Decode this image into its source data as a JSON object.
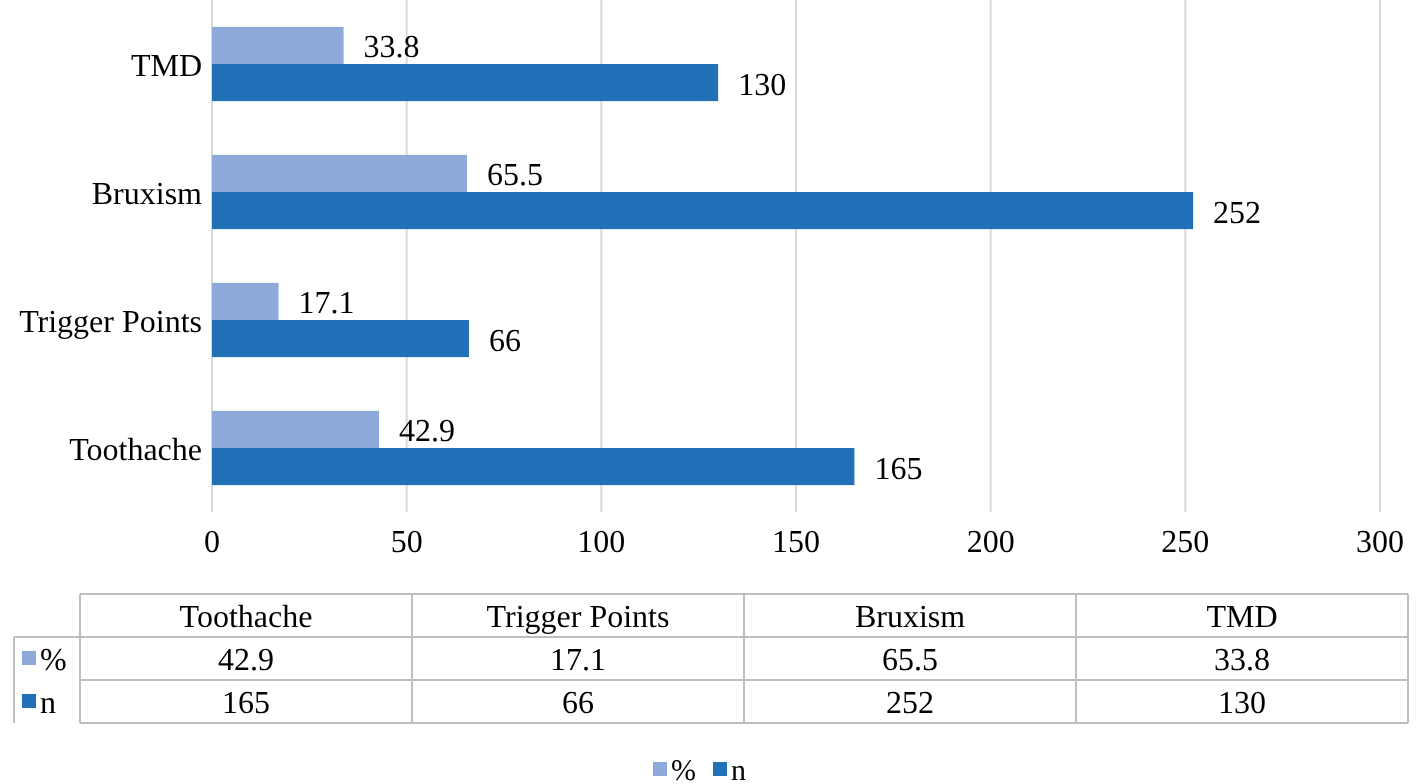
{
  "chart_data": [
    {
      "type": "bar",
      "orientation": "horizontal",
      "categories": [
        "TMD",
        "Bruxism",
        "Trigger Points",
        "Toothache"
      ],
      "series": [
        {
          "name": "%",
          "color": "#8eaadb",
          "values": [
            33.8,
            65.5,
            17.1,
            42.9
          ]
        },
        {
          "name": "n",
          "color": "#2170b8",
          "values": [
            130,
            252,
            66,
            165
          ]
        }
      ],
      "xlim": [
        0,
        300
      ],
      "xticks": [
        0,
        50,
        100,
        150,
        200,
        250,
        300
      ],
      "grid": "x",
      "data_labels": true,
      "legend": "bottom"
    },
    {
      "type": "other",
      "categories": [
        "Toothache",
        "Trigger Points",
        "Bruxism",
        "TMD"
      ],
      "series": [
        {
          "name": "%",
          "color": "#8eaadb",
          "values": [
            42.9,
            17.1,
            65.5,
            33.8
          ]
        },
        {
          "name": "n",
          "color": "#2170b8",
          "values": [
            165,
            66,
            252,
            130
          ]
        }
      ],
      "data_labels": true
    }
  ]
}
